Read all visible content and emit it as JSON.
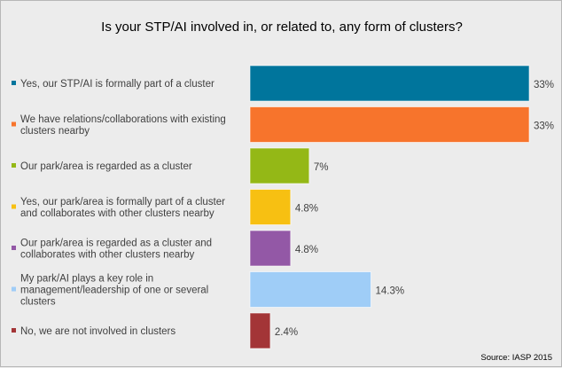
{
  "chart_data": {
    "type": "bar",
    "orientation": "horizontal",
    "title": "Is your STP/AI involved in, or related to, any form of clusters?",
    "categories": [
      "Yes, our STP/AI is formally part of a cluster",
      "We have relations/collaborations with existing clusters nearby",
      "Our park/area is regarded as a cluster",
      "Yes, our park/area is formally part of a cluster and collaborates with other clusters nearby",
      "Our park/area is regarded as a cluster and collaborates with other clusters nearby",
      "My park/AI plays a key role in management/leadership of one or several clusters",
      "No, we are not involved in clusters"
    ],
    "category_lines": [
      [
        "Yes, our STP/AI is formally part of a cluster"
      ],
      [
        "We have relations/collaborations with existing",
        "clusters nearby"
      ],
      [
        "Our park/area is regarded as a cluster"
      ],
      [
        "Yes, our park/area is formally part of a cluster",
        "and collaborates with other clusters nearby"
      ],
      [
        "Our park/area is regarded as a cluster and",
        "collaborates with other clusters nearby"
      ],
      [
        "My park/AI plays a key role in",
        "management/leadership of one or several",
        "clusters"
      ],
      [
        "No, we are not involved in clusters"
      ]
    ],
    "values": [
      33,
      33,
      7,
      4.8,
      4.8,
      14.3,
      2.4
    ],
    "value_labels": [
      "33%",
      "33%",
      "7%",
      "4.8%",
      "4.8%",
      "14.3%",
      "2.4%"
    ],
    "colors": [
      "#00759c",
      "#f7742c",
      "#94b816",
      "#f7c012",
      "#9358a6",
      "#9fcdf7",
      "#a33537"
    ],
    "xlim": [
      0,
      33
    ],
    "grid": false,
    "legend": "none",
    "source": "Source: IASP 2015"
  }
}
